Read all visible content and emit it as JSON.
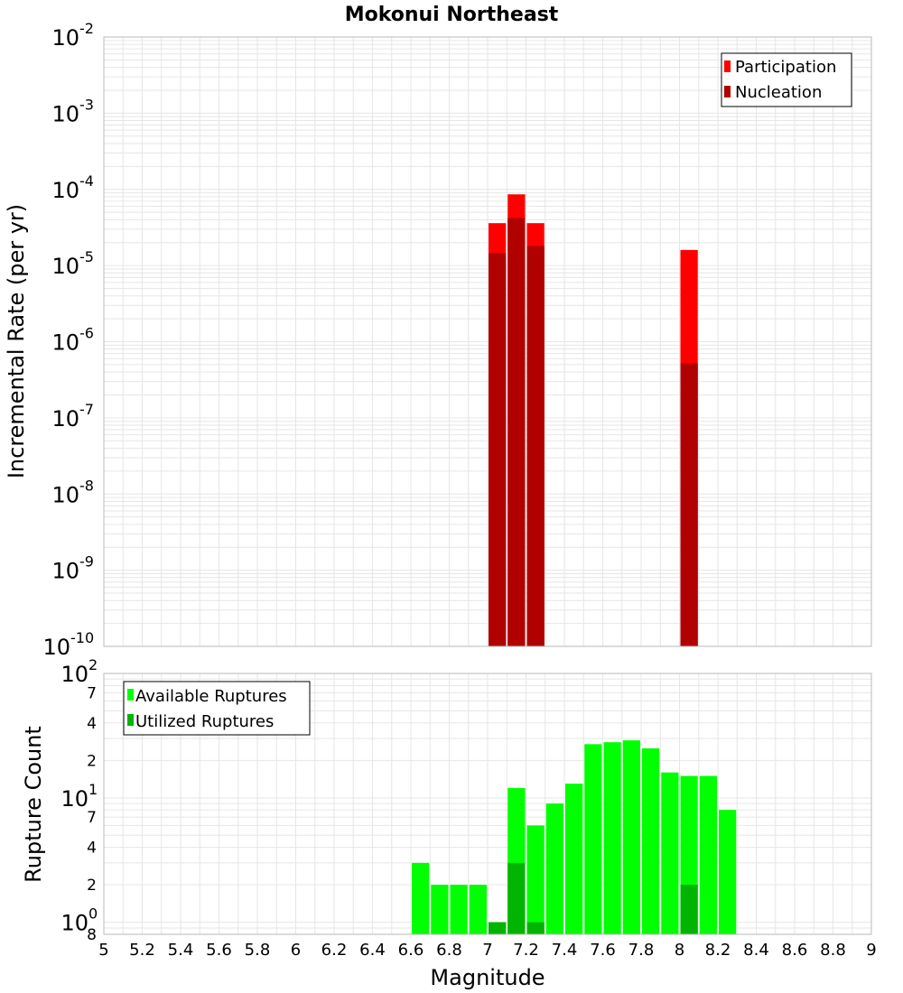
{
  "chart_data": [
    {
      "type": "bar",
      "title": "Mokonui Northeast",
      "ylabel": "Incremental Rate (per yr)",
      "xlabel": "",
      "xlim": [
        5,
        9
      ],
      "yscale": "log",
      "ylim": [
        1e-10,
        0.01
      ],
      "ytick_labels": [
        {
          "base": "10",
          "exp": "-2",
          "value": 0.01
        },
        {
          "base": "10",
          "exp": "-3",
          "value": 0.001
        },
        {
          "base": "10",
          "exp": "-4",
          "value": 0.0001
        },
        {
          "base": "10",
          "exp": "-5",
          "value": 1e-05
        },
        {
          "base": "10",
          "exp": "-6",
          "value": 1e-06
        },
        {
          "base": "10",
          "exp": "-7",
          "value": 1e-07
        },
        {
          "base": "10",
          "exp": "-8",
          "value": 1e-08
        },
        {
          "base": "10",
          "exp": "-9",
          "value": 1e-09
        },
        {
          "base": "10",
          "exp": "-10",
          "value": 1e-10
        }
      ],
      "legend": {
        "position": "top-right",
        "entries": [
          "Participation",
          "Nucleation"
        ]
      },
      "series": [
        {
          "name": "Participation",
          "color": "#ff0000",
          "x": [
            7.0,
            7.1,
            7.2,
            8.0
          ],
          "values": [
            3.6e-05,
            8.6e-05,
            3.6e-05,
            1.6e-05
          ]
        },
        {
          "name": "Nucleation",
          "color": "#b00000",
          "x": [
            7.0,
            7.1,
            7.2,
            8.0
          ],
          "values": [
            1.45e-05,
            4.2e-05,
            1.8e-05,
            5.2e-07
          ]
        }
      ]
    },
    {
      "type": "bar",
      "title": "",
      "ylabel": "Rupture Count",
      "xlabel": "Magnitude",
      "xlim": [
        5,
        9
      ],
      "xticks": [
        "5",
        "5.2",
        "5.4",
        "5.6",
        "5.8",
        "6",
        "6.2",
        "6.4",
        "6.6",
        "6.8",
        "7",
        "7.2",
        "7.4",
        "7.6",
        "7.8",
        "8",
        "8.2",
        "8.4",
        "8.6",
        "8.8",
        "9"
      ],
      "yscale": "log",
      "ylim": [
        0.8,
        100
      ],
      "ytick_labels": [
        {
          "base": "10",
          "exp": "2",
          "value": 100
        },
        {
          "base": "7",
          "exp": "",
          "value": 70
        },
        {
          "base": "4",
          "exp": "",
          "value": 40
        },
        {
          "base": "2",
          "exp": "",
          "value": 20
        },
        {
          "base": "10",
          "exp": "1",
          "value": 10
        },
        {
          "base": "7",
          "exp": "",
          "value": 7
        },
        {
          "base": "4",
          "exp": "",
          "value": 4
        },
        {
          "base": "2",
          "exp": "",
          "value": 2
        },
        {
          "base": "10",
          "exp": "0",
          "value": 1
        },
        {
          "base": "8",
          "exp": "",
          "value": 0.8
        }
      ],
      "legend": {
        "position": "top-left",
        "entries": [
          "Available Ruptures",
          "Utilized Ruptures"
        ]
      },
      "series": [
        {
          "name": "Available Ruptures",
          "color": "#00ff00",
          "x": [
            6.6,
            6.7,
            6.8,
            6.9,
            7.0,
            7.1,
            7.2,
            7.3,
            7.4,
            7.5,
            7.6,
            7.7,
            7.8,
            7.9,
            8.0,
            8.1,
            8.2
          ],
          "values": [
            3,
            2,
            2,
            2,
            1,
            12,
            6,
            9,
            13,
            27,
            28,
            29,
            25,
            16,
            15,
            15,
            8
          ]
        },
        {
          "name": "Utilized Ruptures",
          "color": "#00b400",
          "x": [
            7.0,
            7.1,
            7.2,
            8.0
          ],
          "values": [
            1,
            3,
            1,
            2
          ]
        }
      ]
    }
  ]
}
